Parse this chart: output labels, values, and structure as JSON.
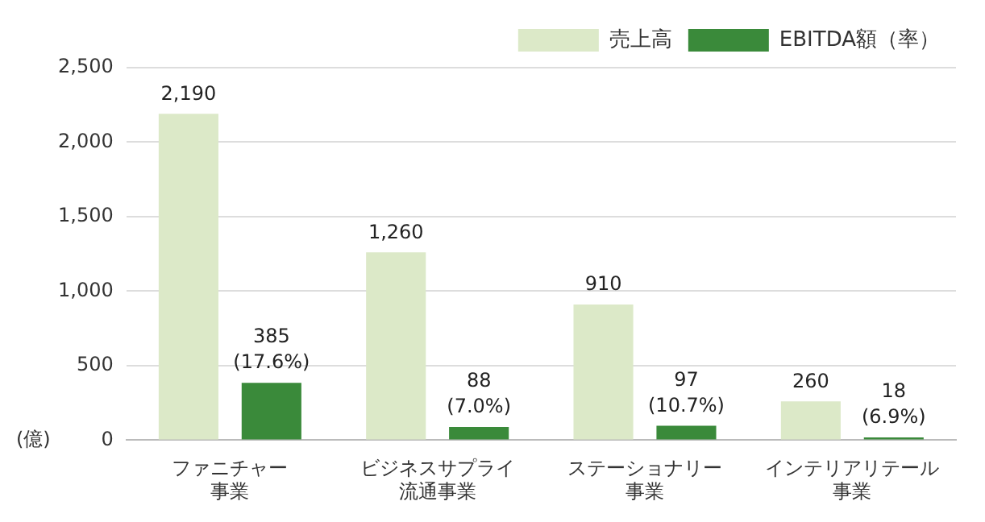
{
  "chart_data": {
    "type": "bar",
    "ylabel": "(億)",
    "categories": [
      "ファニチャー事業",
      "ビジネスサプライ流通事業",
      "ステーショナリー事業",
      "インテリアリテール事業"
    ],
    "series": [
      {
        "name": "売上高",
        "color": "#dce9c8",
        "values": [
          2190,
          1260,
          910,
          260
        ],
        "value_labels": [
          "2,190",
          "1,260",
          "910",
          "260"
        ]
      },
      {
        "name": "EBITDA額（率）",
        "color": "#3a8a3a",
        "values": [
          385,
          88,
          97,
          18
        ],
        "value_labels": [
          "385\n(17.6%)",
          "88\n(7.0%)",
          "97\n(10.7%)",
          "18\n(6.9%)"
        ]
      }
    ],
    "ylim": [
      0,
      2500
    ],
    "yticks": [
      0,
      {
        "value": 500,
        "label": "500"
      },
      {
        "value": 1000,
        "label": "1,000"
      },
      {
        "value": 1500,
        "label": "1,500"
      },
      {
        "value": 2000,
        "label": "2,000"
      },
      {
        "value": 2500,
        "label": "2,500"
      }
    ],
    "grid": "y",
    "legend": "top right"
  }
}
